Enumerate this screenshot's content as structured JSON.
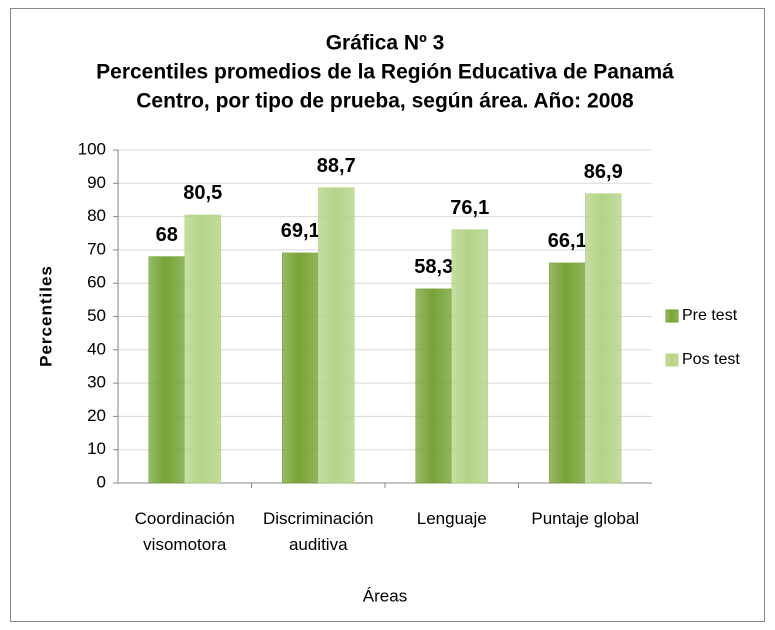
{
  "chart_data": {
    "type": "bar",
    "title": [
      "Gráfica Nº 3",
      "Percentiles promedios de la Región Educativa de Panamá",
      "Centro, por tipo de prueba, según área. Año: 2008"
    ],
    "x_label": "Áreas",
    "y_label": "Percentiles",
    "categories": [
      "Coordinación\nvisomotora",
      "Discriminación\nauditiva",
      "Lenguaje",
      "Puntaje global"
    ],
    "series": [
      {
        "name": "Pre test",
        "color": "#76a336",
        "values": [
          68,
          69.1,
          58.3,
          66.1
        ],
        "value_labels": [
          "68",
          "69,1",
          "58,3",
          "66,1"
        ]
      },
      {
        "name": "Pos test",
        "color": "#b3d486",
        "values": [
          80.5,
          88.7,
          76.1,
          86.9
        ],
        "value_labels": [
          "80,5",
          "88,7",
          "76,1",
          "86,9"
        ]
      }
    ],
    "ylim": [
      0,
      100
    ],
    "yticks": [
      0,
      10,
      20,
      30,
      40,
      50,
      60,
      70,
      80,
      90,
      100
    ],
    "grid": true,
    "legend": "right"
  }
}
